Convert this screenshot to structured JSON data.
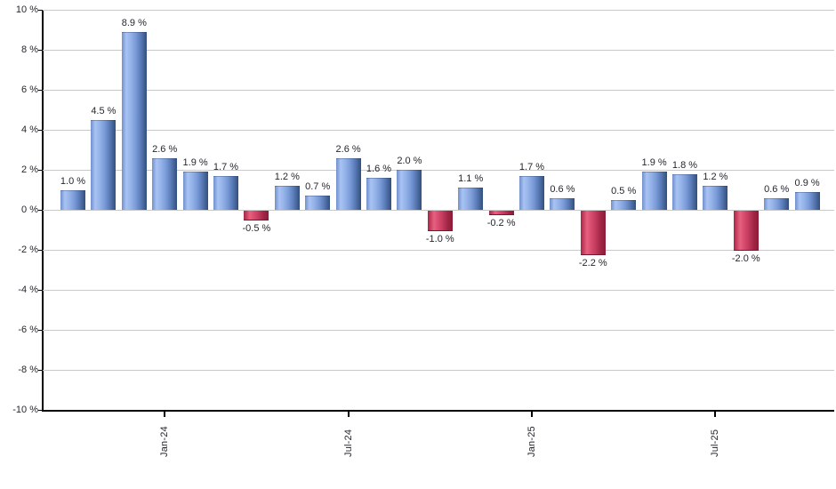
{
  "chart_data": {
    "type": "bar",
    "title": "",
    "xlabel": "",
    "ylabel": "",
    "ylim": [
      -10,
      10
    ],
    "y_tick_step": 2,
    "grid": true,
    "legend_position": "none",
    "y_tick_labels": [
      "10 %",
      "8 %",
      "6 %",
      "4 %",
      "2 %",
      "0 %",
      "-2 %",
      "-4 %",
      "-6 %",
      "-8 %",
      "-10 %"
    ],
    "y_tick_values": [
      10,
      8,
      6,
      4,
      2,
      0,
      -2,
      -4,
      -6,
      -8,
      -10
    ],
    "values": [
      1.0,
      4.5,
      8.9,
      2.6,
      1.9,
      1.7,
      -0.5,
      1.2,
      0.7,
      2.6,
      1.6,
      2.0,
      -1.0,
      1.1,
      -0.2,
      1.7,
      0.6,
      -2.2,
      0.5,
      1.9,
      1.8,
      1.2,
      -2.0,
      0.6,
      0.9
    ],
    "bar_labels": [
      "1.0 %",
      "4.5 %",
      "8.9 %",
      "2.6 %",
      "1.9 %",
      "1.7 %",
      "-0.5 %",
      "1.2 %",
      "0.7 %",
      "2.6 %",
      "1.6 %",
      "2.0 %",
      "-1.0 %",
      "1.1 %",
      "-0.2 %",
      "1.7 %",
      "0.6 %",
      "-2.2 %",
      "0.5 %",
      "1.9 %",
      "1.8 %",
      "1.2 %",
      "-2.0 %",
      "0.6 %",
      "0.9 %"
    ],
    "x_ticks": [
      {
        "label": "Jan-24",
        "bar_index": 3
      },
      {
        "label": "Jul-24",
        "bar_index": 9
      },
      {
        "label": "Jan-25",
        "bar_index": 15
      },
      {
        "label": "Jul-25",
        "bar_index": 21
      }
    ],
    "colors": {
      "positive_bar_gradient": [
        "#7090cc",
        "#a9c3f3",
        "#96b4e9",
        "#7b9cd8",
        "#5a7cb8",
        "#324f7c"
      ],
      "negative_bar_gradient": [
        "#a82646",
        "#e8607f",
        "#d94e70",
        "#c23a5e",
        "#a02646",
        "#8e1a36"
      ],
      "gridline": "#c9c9c9",
      "axis": "#000000",
      "label_text": "#26262e",
      "background": "#ffffff"
    }
  }
}
